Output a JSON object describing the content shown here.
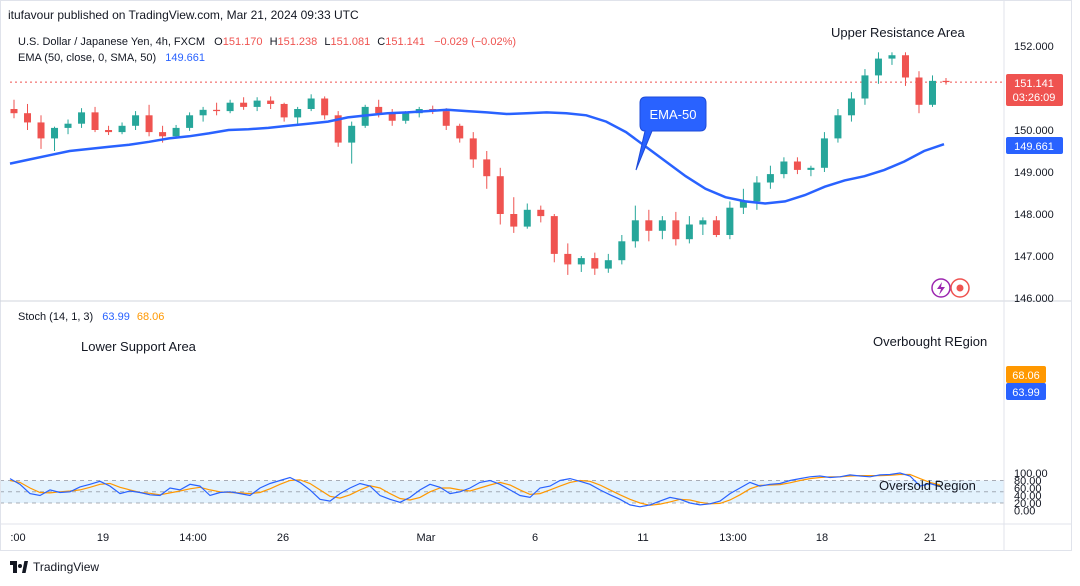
{
  "header": {
    "published": "itufavour published on TradingView.com, Mar 21, 2024 09:33 UTC",
    "symbol": "U.S. Dollar / Japanese Yen, 4h, FXCM",
    "o_label": "O",
    "o_value": "151.170",
    "h_label": "H",
    "h_value": "151.238",
    "l_label": "L",
    "l_value": "151.081",
    "c_label": "C",
    "c_value": "151.141",
    "change": "−0.029 (−0.02%)",
    "ema_label": "EMA (50, close, 0, SMA, 50)",
    "ema_value": "149.661",
    "stoch_label": "Stoch (14, 1, 3)",
    "stoch_k": "63.99",
    "stoch_d": "68.06"
  },
  "annotations": {
    "upper_resistance": "Upper Resistance Area",
    "ema_callout": "EMA-50",
    "lower_support": "Lower Support Area",
    "overbought": "Overbought REgion",
    "oversold": "Oversold Region"
  },
  "price_badge": {
    "price": "151.141",
    "countdown": "03:26:09"
  },
  "ema_badge": "149.661",
  "stoch_badges": {
    "d": "68.06",
    "k": "63.99"
  },
  "footer": {
    "brand": "TradingView"
  },
  "colors": {
    "up": "#26a69a",
    "down": "#ef5350",
    "ema": "#2962ff",
    "k_line": "#2962ff",
    "d_line": "#ff9800",
    "band": "#e3f2fd",
    "price_line": "#ef5350",
    "text": "#131722"
  },
  "chart_data": [
    {
      "type": "candlestick",
      "title": "U.S. Dollar / Japanese Yen, 4h, FXCM",
      "y_ticks": [
        "146.000",
        "147.000",
        "148.000",
        "149.000",
        "150.000",
        "151.000",
        "152.000"
      ],
      "ylim": [
        145.95,
        152.45
      ],
      "x_ticks": [
        ":00",
        "19",
        "14:00",
        "26",
        "Mar",
        "6",
        "11",
        "13:00",
        "18",
        "21"
      ],
      "last_price": 151.141,
      "candles_ohlc": [
        [
          150.5,
          150.72,
          150.28,
          150.4
        ],
        [
          150.4,
          150.62,
          150.0,
          150.18
        ],
        [
          150.18,
          150.35,
          149.55,
          149.8
        ],
        [
          149.8,
          150.08,
          149.5,
          150.05
        ],
        [
          150.05,
          150.25,
          149.9,
          150.15
        ],
        [
          150.15,
          150.52,
          150.05,
          150.42
        ],
        [
          150.42,
          150.55,
          149.95,
          150.0
        ],
        [
          150.0,
          150.1,
          149.88,
          149.95
        ],
        [
          149.95,
          150.18,
          149.9,
          150.1
        ],
        [
          150.1,
          150.45,
          150.0,
          150.35
        ],
        [
          150.35,
          150.6,
          149.85,
          149.95
        ],
        [
          149.95,
          150.1,
          149.7,
          149.85
        ],
        [
          149.85,
          150.12,
          149.8,
          150.05
        ],
        [
          150.05,
          150.42,
          149.98,
          150.35
        ],
        [
          150.35,
          150.55,
          150.2,
          150.48
        ],
        [
          150.48,
          150.65,
          150.35,
          150.45
        ],
        [
          150.45,
          150.72,
          150.4,
          150.65
        ],
        [
          150.65,
          150.78,
          150.48,
          150.55
        ],
        [
          150.55,
          150.78,
          150.45,
          150.7
        ],
        [
          150.7,
          150.8,
          150.5,
          150.62
        ],
        [
          150.62,
          150.65,
          150.2,
          150.3
        ],
        [
          150.3,
          150.55,
          150.1,
          150.5
        ],
        [
          150.5,
          150.85,
          150.45,
          150.75
        ],
        [
          150.75,
          150.8,
          150.25,
          150.35
        ],
        [
          150.35,
          150.45,
          149.6,
          149.7
        ],
        [
          149.7,
          150.2,
          149.2,
          150.1
        ],
        [
          150.1,
          150.6,
          150.05,
          150.55
        ],
        [
          150.55,
          150.72,
          150.3,
          150.4
        ],
        [
          150.4,
          150.5,
          150.1,
          150.22
        ],
        [
          150.22,
          150.45,
          150.15,
          150.4
        ],
        [
          150.4,
          150.55,
          150.3,
          150.5
        ],
        [
          150.5,
          150.58,
          150.38,
          150.45
        ],
        [
          150.45,
          150.52,
          150.0,
          150.1
        ],
        [
          150.1,
          150.15,
          149.7,
          149.8
        ],
        [
          149.8,
          149.95,
          149.1,
          149.3
        ],
        [
          149.3,
          149.5,
          148.6,
          148.9
        ],
        [
          148.9,
          149.1,
          147.75,
          148.0
        ],
        [
          148.0,
          148.4,
          147.55,
          147.7
        ],
        [
          147.7,
          148.25,
          147.65,
          148.1
        ],
        [
          148.1,
          148.2,
          147.8,
          147.95
        ],
        [
          147.95,
          148.0,
          146.85,
          147.05
        ],
        [
          147.05,
          147.3,
          146.55,
          146.8
        ],
        [
          146.8,
          147.0,
          146.62,
          146.95
        ],
        [
          146.95,
          147.08,
          146.55,
          146.7
        ],
        [
          146.7,
          147.05,
          146.6,
          146.9
        ],
        [
          146.9,
          147.5,
          146.8,
          147.35
        ],
        [
          147.35,
          148.2,
          147.2,
          147.85
        ],
        [
          147.85,
          148.1,
          147.35,
          147.6
        ],
        [
          147.6,
          147.95,
          147.4,
          147.85
        ],
        [
          147.85,
          148.05,
          147.25,
          147.4
        ],
        [
          147.4,
          147.95,
          147.3,
          147.75
        ],
        [
          147.75,
          147.92,
          147.5,
          147.85
        ],
        [
          147.85,
          147.95,
          147.45,
          147.5
        ],
        [
          147.5,
          148.3,
          147.4,
          148.15
        ],
        [
          148.15,
          148.6,
          148.0,
          148.3
        ],
        [
          148.3,
          148.9,
          148.1,
          148.75
        ],
        [
          148.75,
          149.15,
          148.6,
          148.95
        ],
        [
          148.95,
          149.35,
          148.85,
          149.25
        ],
        [
          149.25,
          149.35,
          148.95,
          149.05
        ],
        [
          149.05,
          149.15,
          148.9,
          149.1
        ],
        [
          149.1,
          149.95,
          149.0,
          149.8
        ],
        [
          149.8,
          150.5,
          149.7,
          150.35
        ],
        [
          150.35,
          150.9,
          150.2,
          150.75
        ],
        [
          150.75,
          151.45,
          150.6,
          151.3
        ],
        [
          151.3,
          151.85,
          151.1,
          151.7
        ],
        [
          151.7,
          151.85,
          151.55,
          151.78
        ],
        [
          151.78,
          151.85,
          151.05,
          151.25
        ],
        [
          151.25,
          151.4,
          150.4,
          150.6
        ],
        [
          150.6,
          151.3,
          150.55,
          151.17
        ],
        [
          151.17,
          151.238,
          151.081,
          151.141
        ]
      ],
      "ema50": [
        149.2,
        149.3,
        149.4,
        149.5,
        149.55,
        149.6,
        149.65,
        149.72,
        149.8,
        149.85,
        149.92,
        150.0,
        150.02,
        150.05,
        150.1,
        150.15,
        150.2,
        150.3,
        150.35,
        150.4,
        150.42,
        150.45,
        150.48,
        150.45,
        150.42,
        150.38,
        150.4,
        150.42,
        150.4,
        150.35,
        150.2,
        149.95,
        149.6,
        149.25,
        148.9,
        148.6,
        148.4,
        148.3,
        148.25,
        148.3,
        148.45,
        148.65,
        148.8,
        148.9,
        149.05,
        149.25,
        149.5,
        149.661
      ]
    },
    {
      "type": "line",
      "title": "Stoch (14, 1, 3)",
      "y_ticks": [
        "0.00",
        "20.00",
        "40.00",
        "60.00",
        "80.00",
        "100.00"
      ],
      "ylim": [
        -4,
        106
      ],
      "bands": {
        "upper": 80,
        "middle": 50,
        "lower": 20
      },
      "series": [
        {
          "name": "%K",
          "values": [
            85,
            70,
            45,
            40,
            55,
            48,
            50,
            63,
            70,
            78,
            65,
            45,
            52,
            48,
            42,
            40,
            60,
            55,
            70,
            65,
            40,
            48,
            50,
            45,
            40,
            60,
            72,
            80,
            88,
            75,
            55,
            30,
            25,
            45,
            60,
            72,
            65,
            40,
            30,
            22,
            35,
            55,
            70,
            62,
            45,
            50,
            60,
            75,
            80,
            70,
            55,
            40,
            35,
            60,
            65,
            80,
            85,
            78,
            70,
            55,
            42,
            30,
            15,
            10,
            15,
            25,
            35,
            30,
            20,
            15,
            18,
            25,
            45,
            60,
            75,
            65,
            70,
            72,
            80,
            85,
            90,
            92,
            88,
            90,
            95,
            92,
            90,
            95,
            96,
            100,
            92,
            65,
            72,
            63.99
          ]
        },
        {
          "name": "%D",
          "values": [
            80,
            75,
            60,
            48,
            47,
            50,
            52,
            55,
            62,
            70,
            72,
            62,
            55,
            48,
            46,
            42,
            47,
            52,
            58,
            62,
            55,
            50,
            48,
            47,
            45,
            48,
            58,
            70,
            80,
            82,
            72,
            55,
            38,
            33,
            42,
            55,
            66,
            60,
            45,
            32,
            28,
            35,
            50,
            60,
            60,
            55,
            52,
            60,
            68,
            75,
            68,
            55,
            43,
            45,
            55,
            65,
            75,
            80,
            78,
            68,
            55,
            42,
            30,
            20,
            14,
            17,
            23,
            30,
            28,
            22,
            18,
            19,
            28,
            42,
            58,
            67,
            68,
            69,
            74,
            80,
            85,
            88,
            90,
            90,
            92,
            93,
            93,
            93,
            94,
            96,
            96,
            85,
            75,
            68.06
          ]
        }
      ]
    }
  ]
}
